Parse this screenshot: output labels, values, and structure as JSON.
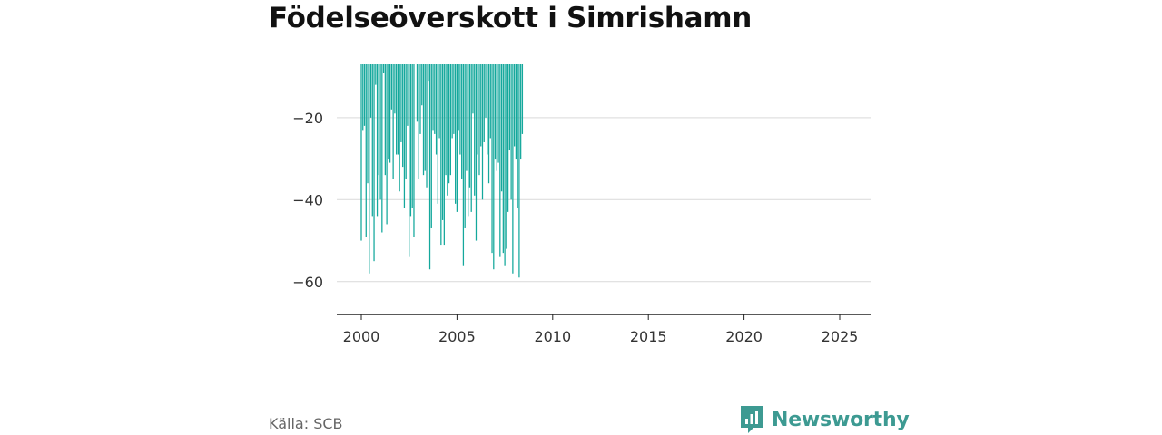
{
  "title": "Födelseöverskott i Simrishamn",
  "source": "Källa: SCB",
  "brand": {
    "name": "Newsworthy",
    "icon": "newsworthy-logo-icon",
    "color": "#3d9a92"
  },
  "chart_data": {
    "type": "bar",
    "title": "Födelseöverskott i Simrishamn",
    "xlabel": "",
    "ylabel": "",
    "bar_color": "#14a89c",
    "grid": true,
    "baseline": -7,
    "ylim": [
      -68,
      -7
    ],
    "y_ticks": [
      -20,
      -40,
      -60
    ],
    "y_tick_labels": [
      "−20",
      "−40",
      "−60"
    ],
    "xlim": [
      2000,
      2025.75
    ],
    "x_ticks": [
      2000,
      2005,
      2010,
      2015,
      2020,
      2025
    ],
    "x_tick_labels": [
      "2000",
      "2005",
      "2010",
      "2015",
      "2020",
      "2025"
    ],
    "x_unit": "month",
    "x_start": "2000-01",
    "values": [
      -50,
      -23,
      -22,
      -49,
      -36,
      -58,
      -20,
      -44,
      -55,
      -12,
      -44,
      -34,
      -40,
      -48,
      -9,
      -34,
      -46,
      -30,
      -31,
      -18,
      -35,
      -19,
      -29,
      -29,
      -38,
      -26,
      -32,
      -42,
      -35,
      -22,
      -54,
      -44,
      -42,
      -49,
      -7,
      -21,
      -35,
      -24,
      -17,
      -34,
      -33,
      -37,
      -11,
      -57,
      -47,
      -23,
      -24,
      -29,
      -41,
      -25,
      -51,
      -45,
      -51,
      -34,
      -39,
      -36,
      -34,
      -25,
      -24,
      -41,
      -43,
      -23,
      -29,
      -35,
      -56,
      -47,
      -33,
      -44,
      -37,
      -43,
      -19,
      -39,
      -50,
      -29,
      -34,
      -27,
      -40,
      -26,
      -20,
      -29,
      -36,
      -25,
      -53,
      -57,
      -30,
      -33,
      -31,
      -54,
      -38,
      -53,
      -56,
      -52,
      -43,
      -28,
      -40,
      -58,
      -27,
      -30,
      -42,
      -59,
      -30,
      -24
    ]
  }
}
